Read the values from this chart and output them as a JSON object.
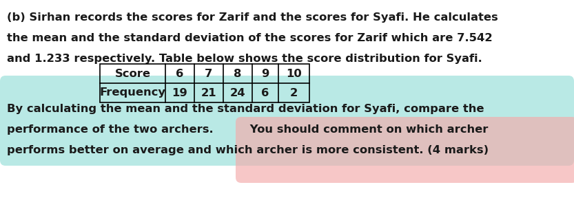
{
  "line1": "(b) Sirhan records the scores for Zarif and the scores for Syafi. He calculates",
  "line2": "the mean and the standard deviation of the scores for Zarif which are 7.542",
  "line3": "and 1.233 respectively. Table below shows the score distribution for Syafi.",
  "table_headers": [
    "Score",
    "6",
    "7",
    "8",
    "9",
    "10"
  ],
  "table_row2": [
    "Frequency",
    "19",
    "21",
    "24",
    "6",
    "2"
  ],
  "line_by": "By calculating the mean and the standard deviation for Syafi, compare the",
  "line_perf_normal": "performance of the two archers.",
  "line_perf_highlight": " You should comment on which archer",
  "line_last": "performs better on average and which archer is more consistent. (4 marks)",
  "highlight_color_cyan": "#80D8D0",
  "highlight_color_pink": "#F4AAAA",
  "text_color": "#1a1a1a",
  "font_size": 11.8,
  "bg_color": "#ffffff"
}
